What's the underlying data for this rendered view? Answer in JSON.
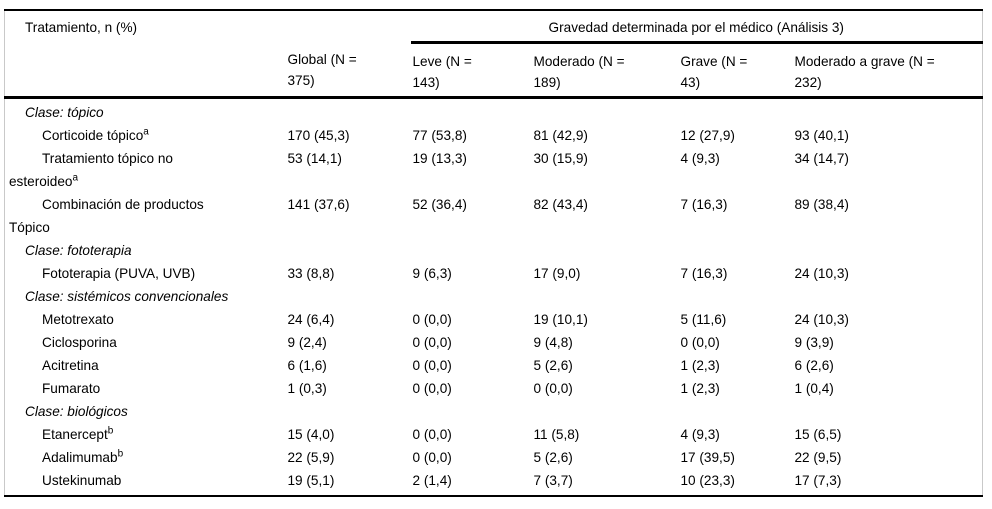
{
  "colors": {
    "background": "#ffffff",
    "text": "#000000",
    "horizontal_rule": "#000000",
    "side_border": "#c9c9c9"
  },
  "table": {
    "corner_header": "Tratamiento, n (%)",
    "group_header": "Gravedad determinada por el médico (Análisis 3)",
    "column_headers": [
      {
        "label": "Global (N = 375)",
        "lines": [
          "Global (N =",
          "375)"
        ]
      },
      {
        "label": "Leve (N = 143)",
        "lines": [
          "Leve (N =",
          "143)"
        ]
      },
      {
        "label": "Moderado (N = 189)",
        "lines": [
          "Moderado (N =",
          "189)"
        ]
      },
      {
        "label": "Grave (N = 43)",
        "lines": [
          "Grave (N =",
          "43)"
        ]
      },
      {
        "label": "Moderado a grave (N = 232)",
        "lines": [
          "Moderado a grave (N =",
          "232)"
        ]
      }
    ],
    "sections": [
      {
        "class_label": "Clase: tópico",
        "rows": [
          {
            "name": "Corticoide tópico",
            "name_lines": [
              "Corticoide tópico"
            ],
            "sup": "a",
            "values": [
              "170 (45,3)",
              "77 (53,8)",
              "81 (42,9)",
              "12 (27,9)",
              "93 (40,1)"
            ]
          },
          {
            "name": "Tratamiento tópico no esteroideo",
            "name_lines": [
              "Tratamiento tópico no",
              "esteroideo"
            ],
            "sup": "a",
            "values": [
              "53 (14,1)",
              "19 (13,3)",
              "30 (15,9)",
              "4 (9,3)",
              "34 (14,7)"
            ]
          },
          {
            "name": "Combinación de productos Tópico",
            "name_lines": [
              "Combinación de productos",
              "Tópico"
            ],
            "sup": "",
            "values": [
              "141 (37,6)",
              "52 (36,4)",
              "82 (43,4)",
              "7 (16,3)",
              "89 (38,4)"
            ]
          }
        ]
      },
      {
        "class_label": "Clase: fototerapia",
        "rows": [
          {
            "name": "Fototerapia (PUVA, UVB)",
            "name_lines": [
              "Fototerapia (PUVA, UVB)"
            ],
            "sup": "",
            "values": [
              "33 (8,8)",
              "9 (6,3)",
              "17 (9,0)",
              "7 (16,3)",
              "24 (10,3)"
            ]
          }
        ]
      },
      {
        "class_label": "Clase: sistémicos convencionales",
        "rows": [
          {
            "name": "Metotrexato",
            "name_lines": [
              "Metotrexato"
            ],
            "sup": "",
            "values": [
              "24 (6,4)",
              "0 (0,0)",
              "19 (10,1)",
              "5 (11,6)",
              "24 (10,3)"
            ]
          },
          {
            "name": "Ciclosporina",
            "name_lines": [
              "Ciclosporina"
            ],
            "sup": "",
            "values": [
              "9 (2,4)",
              "0 (0,0)",
              "9 (4,8)",
              "0 (0,0)",
              "9 (3,9)"
            ]
          },
          {
            "name": "Acitretina",
            "name_lines": [
              "Acitretina"
            ],
            "sup": "",
            "values": [
              "6 (1,6)",
              "0 (0,0)",
              "5 (2,6)",
              "1 (2,3)",
              "6 (2,6)"
            ]
          },
          {
            "name": "Fumarato",
            "name_lines": [
              "Fumarato"
            ],
            "sup": "",
            "values": [
              "1 (0,3)",
              "0 (0,0)",
              "0 (0,0)",
              "1 (2,3)",
              "1 (0,4)"
            ]
          }
        ]
      },
      {
        "class_label": "Clase: biológicos",
        "rows": [
          {
            "name": "Etanercept",
            "name_lines": [
              "Etanercept"
            ],
            "sup": "b",
            "values": [
              "15 (4,0)",
              "0 (0,0)",
              "11 (5,8)",
              "4 (9,3)",
              "15 (6,5)"
            ]
          },
          {
            "name": "Adalimumab",
            "name_lines": [
              "Adalimumab"
            ],
            "sup": "b",
            "values": [
              "22 (5,9)",
              "0 (0,0)",
              "5 (2,6)",
              "17 (39,5)",
              "22 (9,5)"
            ]
          },
          {
            "name": "Ustekinumab",
            "name_lines": [
              "Ustekinumab"
            ],
            "sup": "",
            "values": [
              "19 (5,1)",
              "2 (1,4)",
              "7 (3,7)",
              "10 (23,3)",
              "17 (7,3)"
            ]
          }
        ]
      }
    ]
  }
}
